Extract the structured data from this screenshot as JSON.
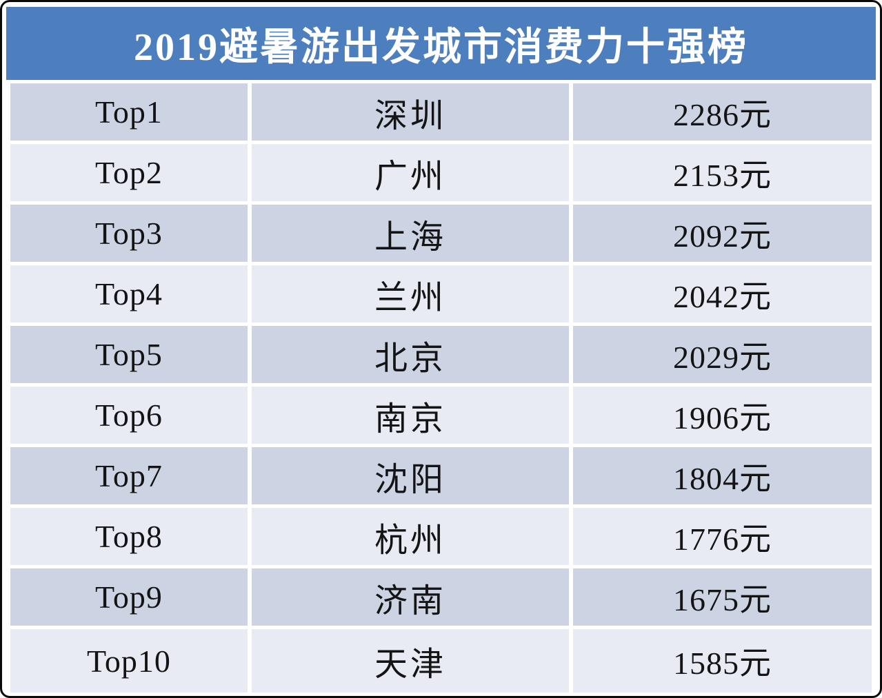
{
  "title": "2019避暑游出发城市消费力十强榜",
  "unit": "元",
  "colors": {
    "header_bg": "#4d7ebd",
    "title_text": "#ffffff",
    "row_odd_bg": "#ccd3e3",
    "row_even_bg": "#e8ebf4",
    "body_text": "#141414",
    "frame_border": "#0a0a0a",
    "gutter": "#ffffff"
  },
  "rows": [
    {
      "rank": "Top1",
      "city": "深圳",
      "price": "2286元"
    },
    {
      "rank": "Top2",
      "city": "广州",
      "price": "2153元"
    },
    {
      "rank": "Top3",
      "city": "上海",
      "price": "2092元"
    },
    {
      "rank": "Top4",
      "city": "兰州",
      "price": "2042元"
    },
    {
      "rank": "Top5",
      "city": "北京",
      "price": "2029元"
    },
    {
      "rank": "Top6",
      "city": "南京",
      "price": "1906元"
    },
    {
      "rank": "Top7",
      "city": "沈阳",
      "price": "1804元"
    },
    {
      "rank": "Top8",
      "city": "杭州",
      "price": "1776元"
    },
    {
      "rank": "Top9",
      "city": "济南",
      "price": "1675元"
    },
    {
      "rank": "Top10",
      "city": "天津",
      "price": "1585元"
    }
  ],
  "chart_data": {
    "type": "table",
    "title": "2019避暑游出发城市消费力十强榜",
    "columns": [
      "rank",
      "city",
      "price_yuan"
    ],
    "unit": "元",
    "rows": [
      [
        "Top1",
        "深圳",
        2286
      ],
      [
        "Top2",
        "广州",
        2153
      ],
      [
        "Top3",
        "上海",
        2092
      ],
      [
        "Top4",
        "兰州",
        2042
      ],
      [
        "Top5",
        "北京",
        2029
      ],
      [
        "Top6",
        "南京",
        1906
      ],
      [
        "Top7",
        "沈阳",
        1804
      ],
      [
        "Top8",
        "杭州",
        1776
      ],
      [
        "Top9",
        "济南",
        1675
      ],
      [
        "Top10",
        "天津",
        1585
      ]
    ]
  }
}
